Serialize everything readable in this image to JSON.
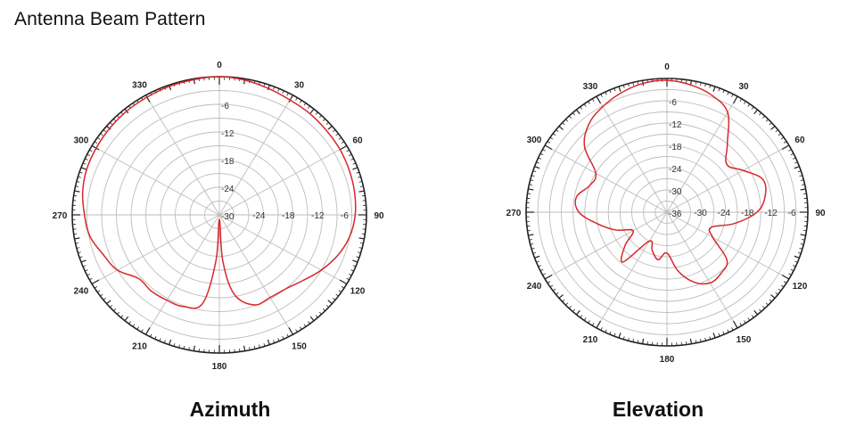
{
  "page": {
    "title": "Antenna Beam Pattern"
  },
  "chart_data": [
    {
      "type": "polar",
      "title": "Azimuth",
      "angle_unit": "deg",
      "angle_direction": "clockwise",
      "angle_zero": "top",
      "angle_ticks": [
        0,
        30,
        60,
        90,
        120,
        150,
        180,
        210,
        240,
        270,
        300,
        330
      ],
      "radial_unit": "dB",
      "radial_range": [
        -30,
        0
      ],
      "radial_ticks": [
        -6,
        -12,
        -18,
        -24,
        -30
      ],
      "radial_labels_shown_on": [
        "0",
        "90"
      ],
      "grid": true,
      "series": [
        {
          "color": "#d9262c",
          "points": [
            [
              0,
              0
            ],
            [
              10,
              -0.3
            ],
            [
              20,
              -0.8
            ],
            [
              30,
              -1.2
            ],
            [
              40,
              -1.3
            ],
            [
              50,
              -1.5
            ],
            [
              60,
              -1.6
            ],
            [
              70,
              -1.8
            ],
            [
              80,
              -2.0
            ],
            [
              90,
              -2.3
            ],
            [
              100,
              -3.0
            ],
            [
              110,
              -4.3
            ],
            [
              120,
              -6.0
            ],
            [
              130,
              -7.8
            ],
            [
              140,
              -9.0
            ],
            [
              150,
              -9.3
            ],
            [
              160,
              -9.2
            ],
            [
              170,
              -12.5
            ],
            [
              176,
              -20
            ],
            [
              180,
              -29
            ],
            [
              184,
              -20
            ],
            [
              190,
              -10.5
            ],
            [
              200,
              -8.8
            ],
            [
              210,
              -8.6
            ],
            [
              220,
              -8.4
            ],
            [
              230,
              -8.5
            ],
            [
              240,
              -6.0
            ],
            [
              250,
              -4.8
            ],
            [
              260,
              -3.2
            ],
            [
              270,
              -2.5
            ],
            [
              280,
              -1.7
            ],
            [
              290,
              -1.2
            ],
            [
              300,
              -1.0
            ],
            [
              310,
              -0.8
            ],
            [
              320,
              -0.6
            ],
            [
              330,
              -0.5
            ],
            [
              340,
              -0.3
            ],
            [
              350,
              -0.2
            ]
          ]
        }
      ]
    },
    {
      "type": "polar",
      "title": "Elevation",
      "angle_unit": "deg",
      "angle_direction": "clockwise",
      "angle_zero": "top",
      "angle_ticks": [
        0,
        30,
        60,
        90,
        120,
        150,
        180,
        210,
        240,
        270,
        300,
        330
      ],
      "radial_unit": "dB",
      "radial_range": [
        -36,
        0
      ],
      "radial_ticks": [
        -6,
        -12,
        -18,
        -24,
        -30,
        -36
      ],
      "radial_labels_shown_on": [
        "0",
        "90"
      ],
      "grid": true,
      "series": [
        {
          "color": "#d9262c",
          "points": [
            [
              0,
              -0.5
            ],
            [
              10,
              -1.2
            ],
            [
              20,
              -2.5
            ],
            [
              30,
              -5.0
            ],
            [
              40,
              -12.0
            ],
            [
              50,
              -16.0
            ],
            [
              60,
              -13.5
            ],
            [
              70,
              -10.0
            ],
            [
              80,
              -10.5
            ],
            [
              90,
              -13.0
            ],
            [
              100,
              -18.5
            ],
            [
              110,
              -24.0
            ],
            [
              120,
              -22.5
            ],
            [
              130,
              -16.0
            ],
            [
              140,
              -14.5
            ],
            [
              150,
              -14.0
            ],
            [
              160,
              -16.0
            ],
            [
              170,
              -20.0
            ],
            [
              180,
              -25.0
            ],
            [
              190,
              -23.0
            ],
            [
              200,
              -25.0
            ],
            [
              210,
              -27.0
            ],
            [
              220,
              -18.5
            ],
            [
              230,
              -22.0
            ],
            [
              240,
              -26.0
            ],
            [
              250,
              -22.0
            ],
            [
              260,
              -18.0
            ],
            [
              270,
              -13.5
            ],
            [
              280,
              -12.5
            ],
            [
              290,
              -15.0
            ],
            [
              300,
              -15.0
            ],
            [
              310,
              -8.5
            ],
            [
              320,
              -5.0
            ],
            [
              330,
              -3.2
            ],
            [
              340,
              -1.8
            ],
            [
              350,
              -0.8
            ]
          ]
        }
      ]
    }
  ]
}
